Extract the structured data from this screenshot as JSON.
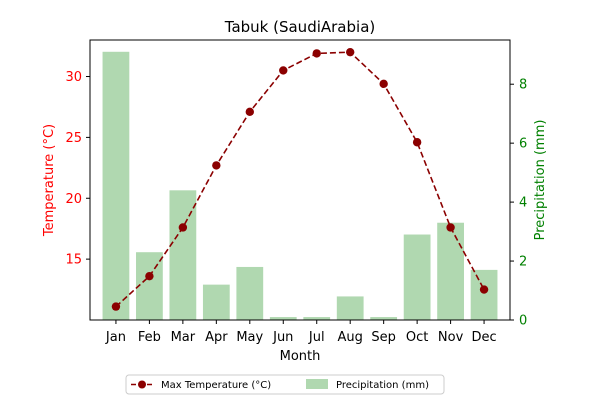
{
  "chart_data": {
    "type": "bar+line",
    "title": "Tabuk (SaudiArabia)",
    "xlabel": "Month",
    "categories": [
      "Jan",
      "Feb",
      "Mar",
      "Apr",
      "May",
      "Jun",
      "Jul",
      "Aug",
      "Sep",
      "Oct",
      "Nov",
      "Dec"
    ],
    "y_left": {
      "label": "Temperature (°C)",
      "ylim": [
        10.0,
        33.0
      ],
      "ticks": [
        15,
        20,
        25,
        30
      ],
      "color": "#ff0000"
    },
    "y_right": {
      "label": "Precipitation (mm)",
      "ylim": [
        0,
        9.5
      ],
      "ticks": [
        0,
        2,
        4,
        6,
        8
      ],
      "color": "#008000"
    },
    "series": [
      {
        "name": "Max Temperature (°C)",
        "type": "line",
        "axis": "left",
        "color": "#8b0000",
        "values": [
          11.1,
          13.6,
          17.6,
          22.7,
          27.1,
          30.5,
          31.9,
          32.0,
          29.4,
          24.6,
          17.6,
          12.5
        ]
      },
      {
        "name": "Precipitation (mm)",
        "type": "bar",
        "axis": "right",
        "color": "#b0d8b0",
        "values": [
          9.1,
          2.3,
          4.4,
          1.2,
          1.8,
          0.1,
          0.1,
          0.8,
          0.1,
          2.9,
          3.3,
          1.7
        ]
      }
    ],
    "legend_position": "bottom-center",
    "grid": false
  }
}
